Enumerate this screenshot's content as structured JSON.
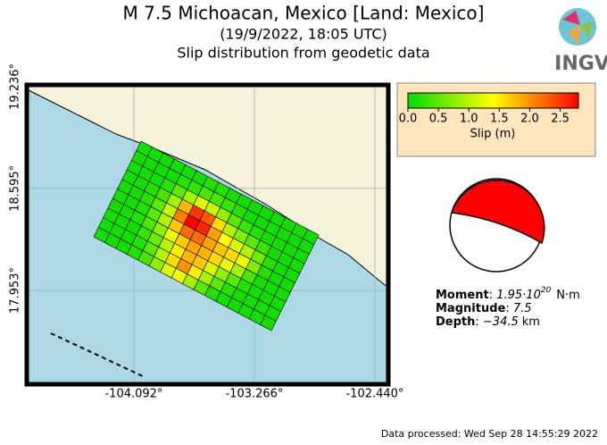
{
  "header": {
    "title": "M 7.5 Michoacan, Mexico [Land: Mexico]",
    "subtitle": "(19/9/2022, 18:05 UTC)",
    "caption": "Slip distribution from geodetic data",
    "logo": "INGV"
  },
  "map": {
    "xlim": [
      -104.826,
      -102.348
    ],
    "ylim": [
      17.362,
      19.247
    ],
    "xticks": [
      {
        "value": -104.092,
        "label": "-104.092°"
      },
      {
        "value": -103.266,
        "label": "-103.266°"
      },
      {
        "value": -102.44,
        "label": "-102.440°"
      }
    ],
    "yticks": [
      {
        "value": 17.953,
        "label": "17.953°"
      },
      {
        "value": 18.595,
        "label": "18.595°"
      },
      {
        "value": 19.236,
        "label": "19.236°"
      }
    ],
    "slip": {
      "colormap": [
        "#00dd00",
        "#ffff00",
        "#ff0000"
      ],
      "values": [
        [
          0.1,
          0.1,
          0.1,
          0.1,
          0.1,
          0.1,
          0.2,
          0.2,
          0.1,
          0.1,
          0.1,
          0.1,
          0.1,
          0.1,
          0.1,
          0.1
        ],
        [
          0.1,
          0.1,
          0.1,
          0.1,
          0.2,
          0.3,
          0.4,
          0.4,
          0.3,
          0.2,
          0.1,
          0.1,
          0.1,
          0.1,
          0.1,
          0.1
        ],
        [
          0.1,
          0.1,
          0.1,
          0.2,
          0.5,
          0.9,
          1.2,
          1.1,
          0.8,
          0.5,
          0.3,
          0.2,
          0.1,
          0.1,
          0.1,
          0.1
        ],
        [
          0.1,
          0.1,
          0.2,
          0.4,
          0.9,
          1.8,
          2.5,
          2.3,
          1.6,
          1.0,
          0.7,
          0.5,
          0.3,
          0.1,
          0.1,
          0.1
        ],
        [
          0.1,
          0.1,
          0.2,
          0.5,
          1.1,
          2.1,
          2.8,
          2.6,
          1.9,
          1.4,
          1.2,
          1.0,
          0.6,
          0.2,
          0.1,
          0.1
        ],
        [
          0.1,
          0.1,
          0.2,
          0.5,
          1.0,
          1.7,
          2.2,
          2.2,
          1.9,
          1.7,
          1.6,
          1.3,
          0.7,
          0.2,
          0.1,
          0.1
        ],
        [
          0.1,
          0.1,
          0.2,
          0.4,
          0.8,
          1.3,
          1.7,
          1.9,
          1.8,
          1.6,
          1.3,
          0.9,
          0.4,
          0.1,
          0.1,
          0.1
        ],
        [
          0.1,
          0.1,
          0.1,
          0.3,
          0.6,
          1.0,
          1.5,
          1.8,
          1.7,
          1.2,
          0.8,
          0.5,
          0.2,
          0.1,
          0.1,
          0.1
        ],
        [
          0.1,
          0.1,
          0.1,
          0.2,
          0.5,
          1.0,
          1.6,
          2.0,
          1.5,
          0.9,
          0.5,
          0.2,
          0.1,
          0.1,
          0.1,
          0.1
        ],
        [
          0.1,
          0.1,
          0.1,
          0.2,
          0.4,
          0.8,
          1.2,
          1.3,
          0.9,
          0.5,
          0.2,
          0.1,
          0.1,
          0.1,
          0.1,
          0.1
        ]
      ],
      "colorbar": {
        "lim": [
          0,
          2.8
        ],
        "ticks": [
          {
            "value": 0,
            "label": "0.0"
          },
          0.5,
          {
            "value": 1,
            "label": "1.0"
          },
          1.5,
          {
            "value": 2,
            "label": "2.0"
          },
          2.5
        ],
        "label": "Slip (m)"
      }
    }
  },
  "source": {
    "moment_label": "Moment",
    "moment_value": "1.95·10",
    "moment_exponent": "20",
    "moment_unit": "N·m",
    "magnitude_label": "Magnitude",
    "magnitude_value": "7.5",
    "depth_label": "Depth",
    "depth_value": "−34.5",
    "depth_unit": "km"
  },
  "footer": "Data processed: Wed Sep 28 14:55:29 2022"
}
